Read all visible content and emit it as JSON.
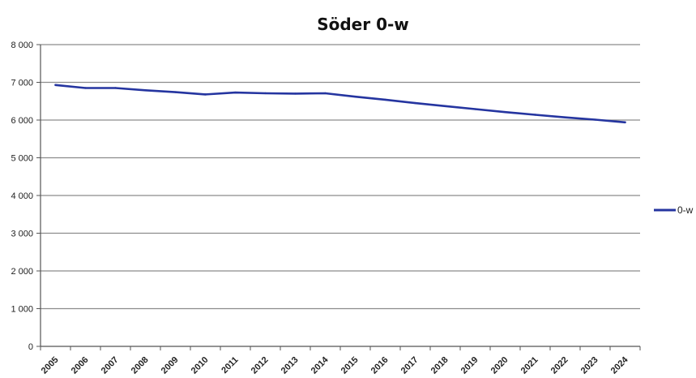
{
  "chart_data": {
    "type": "line",
    "title": "Söder 0-w",
    "xlabel": "",
    "ylabel": "",
    "categories": [
      "2005",
      "2006",
      "2007",
      "2008",
      "2009",
      "2010",
      "2011",
      "2012",
      "2013",
      "2014",
      "2015",
      "2016",
      "2017",
      "2018",
      "2019",
      "2020",
      "2021",
      "2022",
      "2023",
      "2024"
    ],
    "series": [
      {
        "name": "0-w",
        "color": "#2535a0",
        "values": [
          6930,
          6850,
          6850,
          6790,
          6740,
          6680,
          6730,
          6710,
          6700,
          6710,
          6620,
          6540,
          6450,
          6370,
          6290,
          6210,
          6140,
          6070,
          6010,
          5940
        ]
      }
    ],
    "ylim": [
      0,
      8000
    ],
    "yticks": [
      0,
      1000,
      2000,
      3000,
      4000,
      5000,
      6000,
      7000,
      8000
    ],
    "ytick_labels": [
      "0",
      "1 000",
      "2 000",
      "3 000",
      "4 000",
      "5 000",
      "6 000",
      "7 000",
      "8 000"
    ],
    "grid": true,
    "legend": "right"
  }
}
